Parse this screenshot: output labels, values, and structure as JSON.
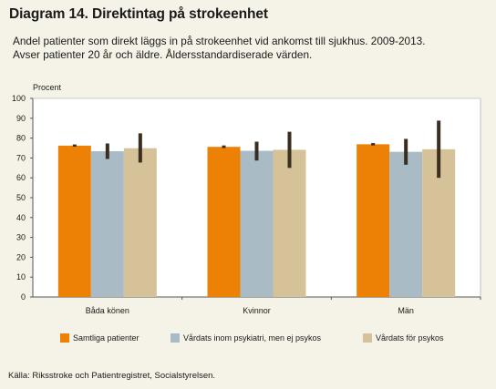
{
  "title": "Diagram 14. Direktintag på strokeenhet",
  "subtitle_lines": [
    "Andel patienter som direkt läggs in på strokeenhet vid ankomst till sjukhus. 2009-2013.",
    "Avser patienter 20 år och äldre. Åldersstandardiserade värden."
  ],
  "source": "Källa: Riksstroke och Patientregistret, Socialstyrelsen.",
  "chart_data": {
    "type": "bar",
    "ylabel": "Procent",
    "xlabel": "",
    "ylim": [
      0,
      100
    ],
    "yticks": [
      0,
      10,
      20,
      30,
      40,
      50,
      60,
      70,
      80,
      90,
      100
    ],
    "grid": false,
    "legend_position": "bottom",
    "categories": [
      "Båda könen",
      "Kvinnor",
      "Män"
    ],
    "series": [
      {
        "name": "Samtliga patienter",
        "color": "#ed8106",
        "values": [
          76.2,
          75.6,
          76.9
        ],
        "error_low": [
          75.7,
          75.0,
          76.3
        ],
        "error_high": [
          76.8,
          76.3,
          77.5
        ]
      },
      {
        "name": "Vårdats inom psykiatri, men ej psykos",
        "color": "#a9bcc6",
        "values": [
          73.4,
          73.6,
          73.1
        ],
        "error_low": [
          69.5,
          68.7,
          66.6
        ],
        "error_high": [
          77.3,
          78.2,
          79.6
        ]
      },
      {
        "name": "Vårdats för psykos",
        "color": "#d5c299",
        "values": [
          74.9,
          74.1,
          74.4
        ],
        "error_low": [
          67.7,
          65.0,
          60.0
        ],
        "error_high": [
          82.4,
          83.2,
          88.8
        ]
      }
    ],
    "error_bar_color": "#3a2e20"
  }
}
